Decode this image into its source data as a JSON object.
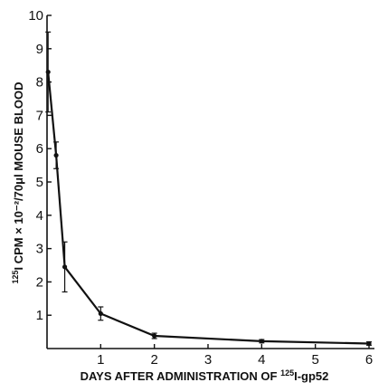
{
  "chart_data": {
    "type": "line",
    "xlabel": {
      "prefix": "DAYS AFTER ADMINISTRATION OF ",
      "sup": "125",
      "suffix": "I-gp52"
    },
    "ylabel": {
      "sup": "125",
      "text": "I CPM × 10⁻²/70μl MOUSE BLOOD"
    },
    "xlim": [
      0,
      6
    ],
    "ylim": [
      0,
      10
    ],
    "x_ticks": [
      1,
      2,
      3,
      4,
      5,
      6
    ],
    "y_ticks": [
      1,
      2,
      3,
      4,
      5,
      6,
      7,
      8,
      9,
      10
    ],
    "grid": false,
    "series": [
      {
        "x": [
          0.02,
          0.17,
          0.33,
          1.0,
          2.0,
          4.0,
          6.0
        ],
        "y": [
          8.3,
          5.8,
          2.45,
          1.05,
          0.38,
          0.22,
          0.15
        ],
        "error": [
          1.2,
          0.4,
          0.75,
          0.2,
          0.08,
          0.05,
          0.05
        ]
      }
    ]
  }
}
